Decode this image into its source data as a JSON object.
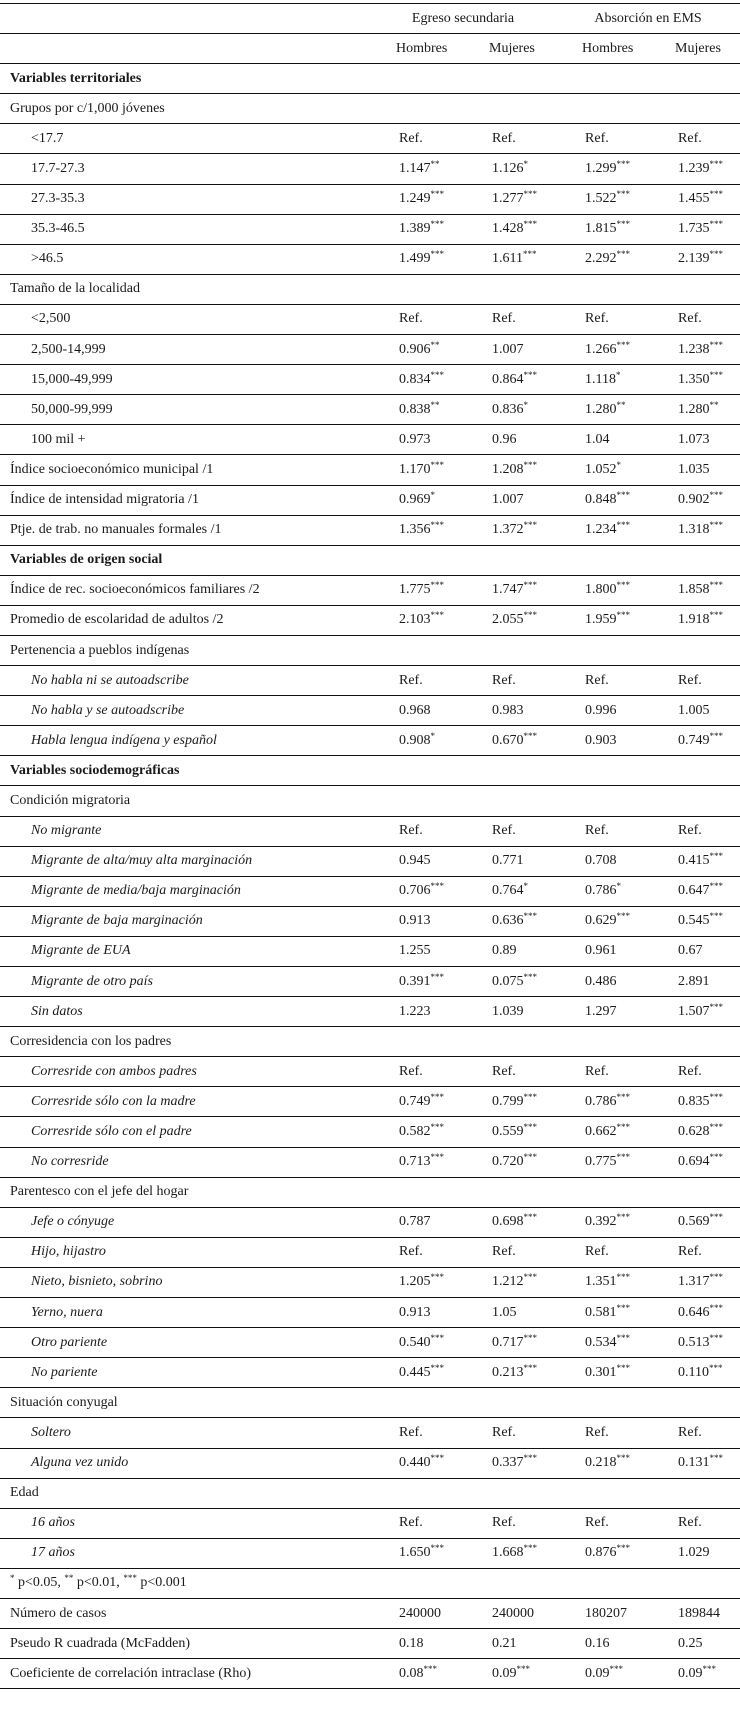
{
  "header": {
    "groups": [
      "Egreso secundaria",
      "Absorción en EMS"
    ],
    "subcols": [
      "Hombres",
      "Mujeres",
      "Hombres",
      "Mujeres"
    ]
  },
  "rows": [
    {
      "type": "section",
      "label": "Variables territoriales"
    },
    {
      "type": "group",
      "label": "Grupos por c/1,000 jóvenes"
    },
    {
      "type": "item",
      "italic": false,
      "label": "<17.7",
      "values": [
        [
          "Ref.",
          ""
        ],
        [
          "Ref.",
          ""
        ],
        [
          "Ref.",
          ""
        ],
        [
          "Ref.",
          ""
        ]
      ]
    },
    {
      "type": "item",
      "italic": false,
      "label": "17.7-27.3",
      "values": [
        [
          "1.147",
          "**"
        ],
        [
          "1.126",
          "*"
        ],
        [
          "1.299",
          "***"
        ],
        [
          "1.239",
          "***"
        ]
      ]
    },
    {
      "type": "item",
      "italic": false,
      "label": "27.3-35.3",
      "values": [
        [
          "1.249",
          "***"
        ],
        [
          "1.277",
          "***"
        ],
        [
          "1.522",
          "***"
        ],
        [
          "1.455",
          "***"
        ]
      ]
    },
    {
      "type": "item",
      "italic": false,
      "label": "35.3-46.5",
      "values": [
        [
          "1.389",
          "***"
        ],
        [
          "1.428",
          "***"
        ],
        [
          "1.815",
          "***"
        ],
        [
          "1.735",
          "***"
        ]
      ]
    },
    {
      "type": "item",
      "italic": false,
      "label": ">46.5",
      "values": [
        [
          "1.499",
          "***"
        ],
        [
          "1.611",
          "***"
        ],
        [
          "2.292",
          "***"
        ],
        [
          "2.139",
          "***"
        ]
      ]
    },
    {
      "type": "group",
      "label": "Tamaño de la localidad"
    },
    {
      "type": "item",
      "italic": false,
      "label": "<2,500",
      "values": [
        [
          "Ref.",
          ""
        ],
        [
          "Ref.",
          ""
        ],
        [
          "Ref.",
          ""
        ],
        [
          "Ref.",
          ""
        ]
      ]
    },
    {
      "type": "item",
      "italic": false,
      "label": "2,500-14,999",
      "values": [
        [
          "0.906",
          "**"
        ],
        [
          "1.007",
          ""
        ],
        [
          "1.266",
          "***"
        ],
        [
          "1.238",
          "***"
        ]
      ]
    },
    {
      "type": "item",
      "italic": false,
      "label": "15,000-49,999",
      "values": [
        [
          "0.834",
          "***"
        ],
        [
          "0.864",
          "***"
        ],
        [
          "1.118",
          "*"
        ],
        [
          "1.350",
          "***"
        ]
      ]
    },
    {
      "type": "item",
      "italic": false,
      "label": "50,000-99,999",
      "values": [
        [
          "0.838",
          "**"
        ],
        [
          "0.836",
          "*"
        ],
        [
          "1.280",
          "**"
        ],
        [
          "1.280",
          "**"
        ]
      ]
    },
    {
      "type": "item",
      "italic": false,
      "label": "100 mil +",
      "values": [
        [
          "0.973",
          ""
        ],
        [
          "0.96",
          ""
        ],
        [
          "1.04",
          ""
        ],
        [
          "1.073",
          ""
        ]
      ]
    },
    {
      "type": "stat",
      "label": "Índice socioeconómico municipal /1",
      "values": [
        [
          "1.170",
          "***"
        ],
        [
          "1.208",
          "***"
        ],
        [
          "1.052",
          "*"
        ],
        [
          "1.035",
          ""
        ]
      ]
    },
    {
      "type": "stat",
      "label": "Índice de intensidad migratoria /1",
      "values": [
        [
          "0.969",
          "*"
        ],
        [
          "1.007",
          ""
        ],
        [
          "0.848",
          "***"
        ],
        [
          "0.902",
          "***"
        ]
      ]
    },
    {
      "type": "stat",
      "label": "Ptje. de trab. no manuales formales /1",
      "values": [
        [
          "1.356",
          "***"
        ],
        [
          "1.372",
          "***"
        ],
        [
          "1.234",
          "***"
        ],
        [
          "1.318",
          "***"
        ]
      ]
    },
    {
      "type": "section",
      "label": "Variables de origen social"
    },
    {
      "type": "stat",
      "label": "Índice de rec. socioeconómicos familiares /2",
      "values": [
        [
          "1.775",
          "***"
        ],
        [
          "1.747",
          "***"
        ],
        [
          "1.800",
          "***"
        ],
        [
          "1.858",
          "***"
        ]
      ]
    },
    {
      "type": "stat",
      "label": "Promedio de escolaridad de adultos /2",
      "values": [
        [
          "2.103",
          "***"
        ],
        [
          "2.055",
          "***"
        ],
        [
          "1.959",
          "***"
        ],
        [
          "1.918",
          "***"
        ]
      ]
    },
    {
      "type": "group",
      "label": "Pertenencia a pueblos indígenas"
    },
    {
      "type": "item",
      "italic": true,
      "label": "No habla ni se autoadscribe",
      "values": [
        [
          "Ref.",
          ""
        ],
        [
          "Ref.",
          ""
        ],
        [
          "Ref.",
          ""
        ],
        [
          "Ref.",
          ""
        ]
      ]
    },
    {
      "type": "item",
      "italic": true,
      "label": "No habla y se autoadscribe",
      "values": [
        [
          "0.968",
          ""
        ],
        [
          "0.983",
          ""
        ],
        [
          "0.996",
          ""
        ],
        [
          "1.005",
          ""
        ]
      ]
    },
    {
      "type": "item",
      "italic": true,
      "label": "Habla lengua indígena y español",
      "values": [
        [
          "0.908",
          "*"
        ],
        [
          "0.670",
          "***"
        ],
        [
          "0.903",
          ""
        ],
        [
          "0.749",
          "***"
        ]
      ]
    },
    {
      "type": "section",
      "label": "Variables sociodemográficas"
    },
    {
      "type": "group",
      "label": "Condición migratoria"
    },
    {
      "type": "item",
      "italic": true,
      "label": "No migrante",
      "values": [
        [
          "Ref.",
          ""
        ],
        [
          "Ref.",
          ""
        ],
        [
          "Ref.",
          ""
        ],
        [
          "Ref.",
          ""
        ]
      ]
    },
    {
      "type": "item",
      "italic": true,
      "label": "Migrante de alta/muy alta marginación",
      "values": [
        [
          "0.945",
          ""
        ],
        [
          "0.771",
          ""
        ],
        [
          "0.708",
          ""
        ],
        [
          "0.415",
          "***"
        ]
      ]
    },
    {
      "type": "item",
      "italic": true,
      "label": "Migrante de media/baja marginación",
      "values": [
        [
          "0.706",
          "***"
        ],
        [
          "0.764",
          "*"
        ],
        [
          "0.786",
          "*"
        ],
        [
          "0.647",
          "***"
        ]
      ]
    },
    {
      "type": "item",
      "italic": true,
      "label": "Migrante de baja marginación",
      "values": [
        [
          "0.913",
          ""
        ],
        [
          "0.636",
          "***"
        ],
        [
          "0.629",
          "***"
        ],
        [
          "0.545",
          "***"
        ]
      ]
    },
    {
      "type": "item",
      "italic": true,
      "label": "Migrante de EUA",
      "values": [
        [
          "1.255",
          ""
        ],
        [
          "0.89",
          ""
        ],
        [
          "0.961",
          ""
        ],
        [
          "0.67",
          ""
        ]
      ]
    },
    {
      "type": "item",
      "italic": true,
      "label": "Migrante de otro país",
      "values": [
        [
          "0.391",
          "***"
        ],
        [
          "0.075",
          "***"
        ],
        [
          "0.486",
          ""
        ],
        [
          "2.891",
          ""
        ]
      ]
    },
    {
      "type": "item",
      "italic": true,
      "label": "Sin datos",
      "values": [
        [
          "1.223",
          ""
        ],
        [
          "1.039",
          ""
        ],
        [
          "1.297",
          ""
        ],
        [
          "1.507",
          "***"
        ]
      ]
    },
    {
      "type": "group",
      "label": "Corresidencia con los padres"
    },
    {
      "type": "item",
      "italic": true,
      "label": "Corresride con ambos padres",
      "values": [
        [
          "Ref.",
          ""
        ],
        [
          "Ref.",
          ""
        ],
        [
          "Ref.",
          ""
        ],
        [
          "Ref.",
          ""
        ]
      ]
    },
    {
      "type": "item",
      "italic": true,
      "label": "Corresride sólo con la madre",
      "values": [
        [
          "0.749",
          "***"
        ],
        [
          "0.799",
          "***"
        ],
        [
          "0.786",
          "***"
        ],
        [
          "0.835",
          "***"
        ]
      ]
    },
    {
      "type": "item",
      "italic": true,
      "label": "Corresride sólo con el padre",
      "values": [
        [
          "0.582",
          "***"
        ],
        [
          "0.559",
          "***"
        ],
        [
          "0.662",
          "***"
        ],
        [
          "0.628",
          "***"
        ]
      ]
    },
    {
      "type": "item",
      "italic": true,
      "label": "No corresride",
      "values": [
        [
          "0.713",
          "***"
        ],
        [
          "0.720",
          "***"
        ],
        [
          "0.775",
          "***"
        ],
        [
          "0.694",
          "***"
        ]
      ]
    },
    {
      "type": "group",
      "label": "Parentesco con el jefe del hogar"
    },
    {
      "type": "item",
      "italic": true,
      "label": "Jefe o cónyuge",
      "values": [
        [
          "0.787",
          ""
        ],
        [
          "0.698",
          "***"
        ],
        [
          "0.392",
          "***"
        ],
        [
          "0.569",
          "***"
        ]
      ]
    },
    {
      "type": "item",
      "italic": true,
      "label": "Hijo, hijastro",
      "values": [
        [
          "Ref.",
          ""
        ],
        [
          "Ref.",
          ""
        ],
        [
          "Ref.",
          ""
        ],
        [
          "Ref.",
          ""
        ]
      ]
    },
    {
      "type": "item",
      "italic": true,
      "label": "Nieto, bisnieto, sobrino",
      "values": [
        [
          "1.205",
          "***"
        ],
        [
          "1.212",
          "***"
        ],
        [
          "1.351",
          "***"
        ],
        [
          "1.317",
          "***"
        ]
      ]
    },
    {
      "type": "item",
      "italic": true,
      "label": "Yerno, nuera",
      "values": [
        [
          "0.913",
          ""
        ],
        [
          "1.05",
          ""
        ],
        [
          "0.581",
          "***"
        ],
        [
          "0.646",
          "***"
        ]
      ]
    },
    {
      "type": "item",
      "italic": true,
      "label": "Otro pariente",
      "values": [
        [
          "0.540",
          "***"
        ],
        [
          "0.717",
          "***"
        ],
        [
          "0.534",
          "***"
        ],
        [
          "0.513",
          "***"
        ]
      ]
    },
    {
      "type": "item",
      "italic": true,
      "label": "No pariente",
      "values": [
        [
          "0.445",
          "***"
        ],
        [
          "0.213",
          "***"
        ],
        [
          "0.301",
          "***"
        ],
        [
          "0.110",
          "***"
        ]
      ]
    },
    {
      "type": "group",
      "label": "Situación conyugal"
    },
    {
      "type": "item",
      "italic": true,
      "label": "Soltero",
      "values": [
        [
          "Ref.",
          ""
        ],
        [
          "Ref.",
          ""
        ],
        [
          "Ref.",
          ""
        ],
        [
          "Ref.",
          ""
        ]
      ]
    },
    {
      "type": "item",
      "italic": true,
      "label": "Alguna vez unido",
      "values": [
        [
          "0.440",
          "***"
        ],
        [
          "0.337",
          "***"
        ],
        [
          "0.218",
          "***"
        ],
        [
          "0.131",
          "***"
        ]
      ]
    },
    {
      "type": "group",
      "label": "Edad"
    },
    {
      "type": "item",
      "italic": true,
      "label": "16 años",
      "values": [
        [
          "Ref.",
          ""
        ],
        [
          "Ref.",
          ""
        ],
        [
          "Ref.",
          ""
        ],
        [
          "Ref.",
          ""
        ]
      ]
    },
    {
      "type": "item",
      "italic": true,
      "label": "17 años",
      "values": [
        [
          "1.650",
          "***"
        ],
        [
          "1.668",
          "***"
        ],
        [
          "0.876",
          "***"
        ],
        [
          "1.029",
          ""
        ]
      ]
    },
    {
      "type": "footnote",
      "parts": [
        [
          "*",
          " p<0.05, "
        ],
        [
          "**",
          " p<0.01, "
        ],
        [
          "***",
          " p<0.001"
        ]
      ]
    },
    {
      "type": "stat",
      "label": "Número de casos",
      "values": [
        [
          "240000",
          ""
        ],
        [
          "240000",
          ""
        ],
        [
          "180207",
          ""
        ],
        [
          "189844",
          ""
        ]
      ]
    },
    {
      "type": "stat",
      "label": "Pseudo R cuadrada (McFadden)",
      "values": [
        [
          "0.18",
          ""
        ],
        [
          "0.21",
          ""
        ],
        [
          "0.16",
          ""
        ],
        [
          "0.25",
          ""
        ]
      ]
    },
    {
      "type": "stat",
      "label": "Coeficiente de correlación intraclase (Rho)",
      "values": [
        [
          "0.08",
          "***"
        ],
        [
          "0.09",
          "***"
        ],
        [
          "0.09",
          "***"
        ],
        [
          "0.09",
          "***"
        ]
      ]
    }
  ]
}
